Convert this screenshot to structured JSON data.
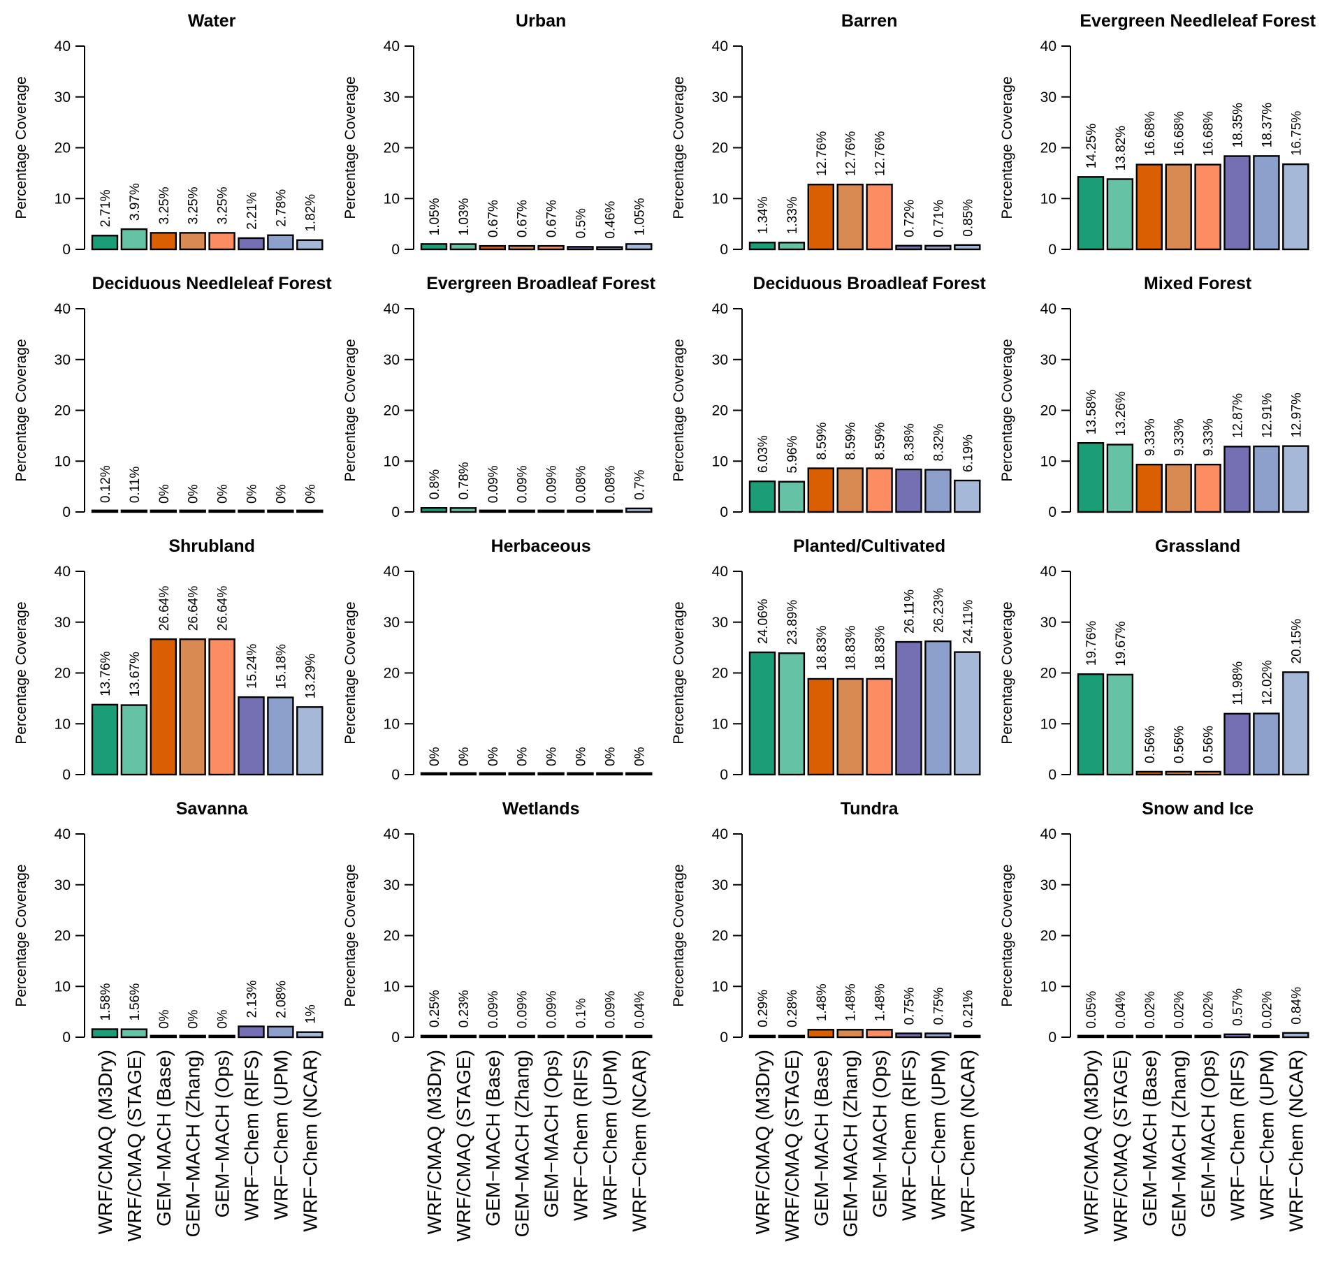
{
  "figure": {
    "ylabel": "Percentage Coverage",
    "ylim": [
      0,
      40
    ],
    "yticks": [
      0,
      10,
      20,
      30,
      40
    ],
    "categories": [
      "WRF/CMAQ (M3Dry)",
      "WRF/CMAQ (STAGE)",
      "GEM−MACH (Base)",
      "GEM−MACH (Zhang)",
      "GEM−MACH (Ops)",
      "WRF−Chem (RIFS)",
      "WRF−Chem (UPM)",
      "WRF−Chem (NCAR)"
    ],
    "colors": [
      "#1b9e77",
      "#66c2a5",
      "#d95f02",
      "#d98a52",
      "#fc8d62",
      "#7570b3",
      "#8da0cb",
      "#a6b8d8"
    ]
  },
  "chart_data": [
    {
      "type": "bar",
      "title": "Water",
      "ylabel": "Percentage Coverage",
      "ylim": [
        0,
        40
      ],
      "values": [
        2.71,
        3.97,
        3.25,
        3.25,
        3.25,
        2.21,
        2.78,
        1.82
      ],
      "labels": [
        "2.71%",
        "3.97%",
        "3.25%",
        "3.25%",
        "3.25%",
        "2.21%",
        "2.78%",
        "1.82%"
      ]
    },
    {
      "type": "bar",
      "title": "Urban",
      "ylabel": "Percentage Coverage",
      "ylim": [
        0,
        40
      ],
      "values": [
        1.05,
        1.03,
        0.67,
        0.67,
        0.67,
        0.5,
        0.46,
        1.05
      ],
      "labels": [
        "1.05%",
        "1.03%",
        "0.67%",
        "0.67%",
        "0.67%",
        "0.5%",
        "0.46%",
        "1.05%"
      ]
    },
    {
      "type": "bar",
      "title": "Barren",
      "ylabel": "Percentage Coverage",
      "ylim": [
        0,
        40
      ],
      "values": [
        1.34,
        1.33,
        12.76,
        12.76,
        12.76,
        0.72,
        0.71,
        0.85
      ],
      "labels": [
        "1.34%",
        "1.33%",
        "12.76%",
        "12.76%",
        "12.76%",
        "0.72%",
        "0.71%",
        "0.85%"
      ]
    },
    {
      "type": "bar",
      "title": "Evergreen Needleleaf Forest",
      "ylabel": "Percentage Coverage",
      "ylim": [
        0,
        40
      ],
      "values": [
        14.25,
        13.82,
        16.68,
        16.68,
        16.68,
        18.35,
        18.37,
        16.75
      ],
      "labels": [
        "14.25%",
        "13.82%",
        "16.68%",
        "16.68%",
        "16.68%",
        "18.35%",
        "18.37%",
        "16.75%"
      ]
    },
    {
      "type": "bar",
      "title": "Deciduous Needleleaf Forest",
      "ylabel": "Percentage Coverage",
      "ylim": [
        0,
        40
      ],
      "values": [
        0.12,
        0.11,
        0,
        0,
        0,
        0,
        0,
        0
      ],
      "labels": [
        "0.12%",
        "0.11%",
        "0%",
        "0%",
        "0%",
        "0%",
        "0%",
        "0%"
      ]
    },
    {
      "type": "bar",
      "title": "Evergreen Broadleaf Forest",
      "ylabel": "Percentage Coverage",
      "ylim": [
        0,
        40
      ],
      "values": [
        0.8,
        0.78,
        0.09,
        0.09,
        0.09,
        0.08,
        0.08,
        0.7
      ],
      "labels": [
        "0.8%",
        "0.78%",
        "0.09%",
        "0.09%",
        "0.09%",
        "0.08%",
        "0.08%",
        "0.7%"
      ]
    },
    {
      "type": "bar",
      "title": "Deciduous Broadleaf Forest",
      "ylabel": "Percentage Coverage",
      "ylim": [
        0,
        40
      ],
      "values": [
        6.03,
        5.96,
        8.59,
        8.59,
        8.59,
        8.38,
        8.32,
        6.19
      ],
      "labels": [
        "6.03%",
        "5.96%",
        "8.59%",
        "8.59%",
        "8.59%",
        "8.38%",
        "8.32%",
        "6.19%"
      ]
    },
    {
      "type": "bar",
      "title": "Mixed Forest",
      "ylabel": "Percentage Coverage",
      "ylim": [
        0,
        40
      ],
      "values": [
        13.58,
        13.26,
        9.33,
        9.33,
        9.33,
        12.87,
        12.91,
        12.97
      ],
      "labels": [
        "13.58%",
        "13.26%",
        "9.33%",
        "9.33%",
        "9.33%",
        "12.87%",
        "12.91%",
        "12.97%"
      ]
    },
    {
      "type": "bar",
      "title": "Shrubland",
      "ylabel": "Percentage Coverage",
      "ylim": [
        0,
        40
      ],
      "values": [
        13.76,
        13.67,
        26.64,
        26.64,
        26.64,
        15.24,
        15.18,
        13.29
      ],
      "labels": [
        "13.76%",
        "13.67%",
        "26.64%",
        "26.64%",
        "26.64%",
        "15.24%",
        "15.18%",
        "13.29%"
      ]
    },
    {
      "type": "bar",
      "title": "Herbaceous",
      "ylabel": "Percentage Coverage",
      "ylim": [
        0,
        40
      ],
      "values": [
        0,
        0,
        0,
        0,
        0,
        0,
        0,
        0
      ],
      "labels": [
        "0%",
        "0%",
        "0%",
        "0%",
        "0%",
        "0%",
        "0%",
        "0%"
      ]
    },
    {
      "type": "bar",
      "title": "Planted/Cultivated",
      "ylabel": "Percentage Coverage",
      "ylim": [
        0,
        40
      ],
      "values": [
        24.06,
        23.89,
        18.83,
        18.83,
        18.83,
        26.11,
        26.23,
        24.11
      ],
      "labels": [
        "24.06%",
        "23.89%",
        "18.83%",
        "18.83%",
        "18.83%",
        "26.11%",
        "26.23%",
        "24.11%"
      ]
    },
    {
      "type": "bar",
      "title": "Grassland",
      "ylabel": "Percentage Coverage",
      "ylim": [
        0,
        40
      ],
      "values": [
        19.76,
        19.67,
        0.56,
        0.56,
        0.56,
        11.98,
        12.02,
        20.15
      ],
      "labels": [
        "19.76%",
        "19.67%",
        "0.56%",
        "0.56%",
        "0.56%",
        "11.98%",
        "12.02%",
        "20.15%"
      ]
    },
    {
      "type": "bar",
      "title": "Savanna",
      "ylabel": "Percentage Coverage",
      "ylim": [
        0,
        40
      ],
      "values": [
        1.58,
        1.56,
        0,
        0,
        0,
        2.13,
        2.08,
        1
      ],
      "labels": [
        "1.58%",
        "1.56%",
        "0%",
        "0%",
        "0%",
        "2.13%",
        "2.08%",
        "1%"
      ]
    },
    {
      "type": "bar",
      "title": "Wetlands",
      "ylabel": "Percentage Coverage",
      "ylim": [
        0,
        40
      ],
      "values": [
        0.25,
        0.23,
        0.09,
        0.09,
        0.09,
        0.1,
        0.09,
        0.04
      ],
      "labels": [
        "0.25%",
        "0.23%",
        "0.09%",
        "0.09%",
        "0.09%",
        "0.1%",
        "0.09%",
        "0.04%"
      ]
    },
    {
      "type": "bar",
      "title": "Tundra",
      "ylabel": "Percentage Coverage",
      "ylim": [
        0,
        40
      ],
      "values": [
        0.29,
        0.28,
        1.48,
        1.48,
        1.48,
        0.75,
        0.75,
        0.21
      ],
      "labels": [
        "0.29%",
        "0.28%",
        "1.48%",
        "1.48%",
        "1.48%",
        "0.75%",
        "0.75%",
        "0.21%"
      ]
    },
    {
      "type": "bar",
      "title": "Snow and Ice",
      "ylabel": "Percentage Coverage",
      "ylim": [
        0,
        40
      ],
      "values": [
        0.05,
        0.04,
        0.02,
        0.02,
        0.02,
        0.57,
        0.02,
        0.84
      ],
      "labels": [
        "0.05%",
        "0.04%",
        "0.02%",
        "0.02%",
        "0.02%",
        "0.57%",
        "0.02%",
        "0.84%"
      ]
    }
  ]
}
